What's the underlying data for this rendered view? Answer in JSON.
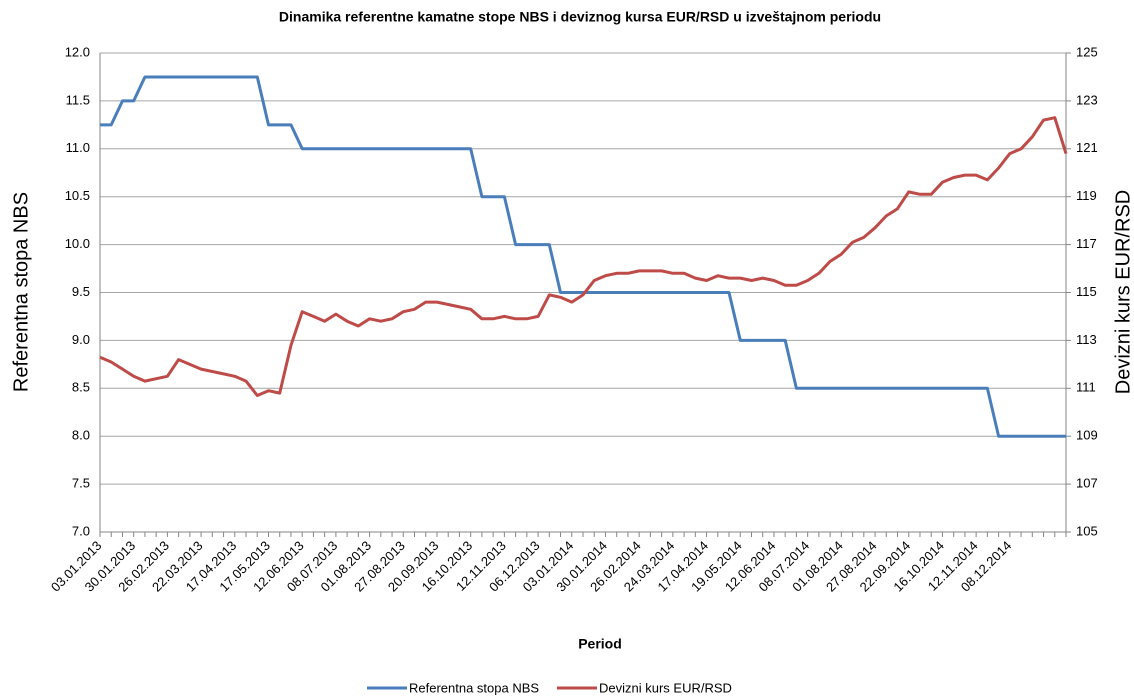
{
  "chart_data": {
    "type": "line",
    "title": "Dinamika referentne kamatne stope NBS i deviznog kursa EUR/RSD u izveštajnom periodu",
    "xlabel": "Period",
    "ylabel": "Referentna stopa NBS",
    "y2label": "Devizni kurs EUR/RSD",
    "categories": [
      "03.01.2013",
      null,
      null,
      "30.01.2013",
      null,
      null,
      "26.02.2013",
      null,
      null,
      "22.03.2013",
      null,
      null,
      "17.04.2013",
      null,
      null,
      "17.05.2013",
      null,
      null,
      "12.06.2013",
      null,
      null,
      "08.07.2013",
      null,
      null,
      "01.08.2013",
      null,
      null,
      "27.08.2013",
      null,
      null,
      "20.09.2013",
      null,
      null,
      "16.10.2013",
      null,
      null,
      "12.11.2013",
      null,
      null,
      "06.12.2013",
      null,
      null,
      "03.01.2014",
      null,
      null,
      "30.01.2014",
      null,
      null,
      "26.02.2014",
      null,
      null,
      "24.03.2014",
      null,
      null,
      "17.04.2014",
      null,
      null,
      "19.05.2014",
      null,
      null,
      "12.06.2014",
      null,
      null,
      "08.07.2014",
      null,
      null,
      "01.08.2014",
      null,
      null,
      "27.08.2014",
      null,
      null,
      "22.09.2014",
      null,
      null,
      "16.10.2014",
      null,
      null,
      "12.11.2014",
      null,
      null,
      "08.12.2014",
      null,
      null,
      null,
      null,
      null
    ],
    "series": [
      {
        "name": "Referentna stopa NBS",
        "color": "#4a7ebb",
        "values": [
          11.25,
          11.25,
          11.5,
          11.5,
          11.75,
          11.75,
          11.75,
          11.75,
          11.75,
          11.75,
          11.75,
          11.75,
          11.75,
          11.75,
          11.75,
          11.25,
          11.25,
          11.25,
          11.0,
          11.0,
          11.0,
          11.0,
          11.0,
          11.0,
          11.0,
          11.0,
          11.0,
          11.0,
          11.0,
          11.0,
          11.0,
          11.0,
          11.0,
          11.0,
          10.5,
          10.5,
          10.5,
          10.0,
          10.0,
          10.0,
          10.0,
          9.5,
          9.5,
          9.5,
          9.5,
          9.5,
          9.5,
          9.5,
          9.5,
          9.5,
          9.5,
          9.5,
          9.5,
          9.5,
          9.5,
          9.5,
          9.5,
          9.0,
          9.0,
          9.0,
          9.0,
          9.0,
          8.5,
          8.5,
          8.5,
          8.5,
          8.5,
          8.5,
          8.5,
          8.5,
          8.5,
          8.5,
          8.5,
          8.5,
          8.5,
          8.5,
          8.5,
          8.5,
          8.5,
          8.5,
          8.0,
          8.0,
          8.0,
          8.0,
          8.0,
          8.0,
          8.0
        ]
      },
      {
        "name": "Devizni kurs EUR/RSD",
        "color": "#be4b48",
        "axis": "y2",
        "values": [
          112.3,
          112.1,
          111.8,
          111.5,
          111.3,
          111.4,
          111.5,
          112.2,
          112.0,
          111.8,
          111.7,
          111.6,
          111.5,
          111.3,
          110.7,
          110.9,
          110.8,
          112.8,
          114.2,
          114.0,
          113.8,
          114.1,
          113.8,
          113.6,
          113.9,
          113.8,
          113.9,
          114.2,
          114.3,
          114.6,
          114.6,
          114.5,
          114.4,
          114.3,
          113.9,
          113.9,
          114.0,
          113.9,
          113.9,
          114.0,
          114.9,
          114.8,
          114.6,
          114.9,
          115.5,
          115.7,
          115.8,
          115.8,
          115.9,
          115.9,
          115.9,
          115.8,
          115.8,
          115.6,
          115.5,
          115.7,
          115.6,
          115.6,
          115.5,
          115.6,
          115.5,
          115.3,
          115.3,
          115.5,
          115.8,
          116.3,
          116.6,
          117.1,
          117.3,
          117.7,
          118.2,
          118.5,
          119.2,
          119.1,
          119.1,
          119.6,
          119.8,
          119.9,
          119.9,
          119.7,
          120.2,
          120.8,
          121.0,
          121.5,
          122.2,
          122.3,
          120.8
        ]
      }
    ],
    "ylim": [
      7,
      12
    ],
    "yticks": [
      {
        "value": 7,
        "label": "7.0"
      },
      7.5,
      {
        "value": 8,
        "label": "8.0"
      },
      8.5,
      {
        "value": 9,
        "label": "9.0"
      },
      9.5,
      {
        "value": 10,
        "label": "10.0"
      },
      10.5,
      {
        "value": 11,
        "label": "11.0"
      },
      11.5,
      {
        "value": 12,
        "label": "12.0"
      }
    ],
    "y2lim": [
      105,
      125
    ],
    "y2ticks": [
      105,
      107,
      109,
      111,
      113,
      115,
      117,
      119,
      121,
      123,
      125
    ],
    "grid": true,
    "legend": "bottom"
  }
}
